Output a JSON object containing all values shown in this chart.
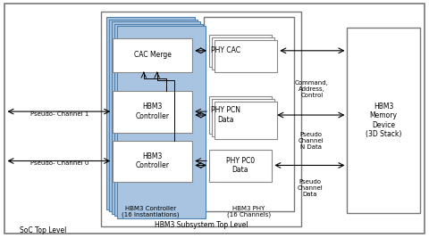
{
  "soc_label": "SoC Top Level",
  "hbm3_subsystem_label": "HBM3 Subsystem Top Level",
  "ctrl_stack_label": "HBM3 Controller\n(16 Instantiations)",
  "ctrl1_label": "HBM3\nController",
  "ctrl2_label": "HBM3\nController",
  "cac_label": "CAC Merge",
  "phy_label": "HBM3 PHY\n(16 Channels)",
  "phy_pc0_label": "PHY PC0\nData",
  "phy_pcn_label": "PHY PCN\nData",
  "phy_cac_label": "PHY CAC",
  "hbm_mem_label": "HBM3\nMemory\nDevice\n(3D Stack)",
  "pseudo_ch0_label": "Pseudo- Channel 0",
  "pseudo_ch1_label": "Pseudo- Channel 1",
  "pseudo_ch_data_label": "Pseudo\nChannel\nData",
  "pseudo_ch_n_data_label": "Pseudo\nChannel\nN Data",
  "cmd_addr_ctrl_label": "Command,\nAddress,\nControl",
  "stack_color": "#a8c4e0",
  "stack_edge": "#5080b0",
  "white_box_edge": "#888888",
  "outer_edge": "#666666",
  "text_color": "#000000",
  "fs_title": 6.0,
  "fs_label": 5.5,
  "fs_small": 5.0
}
